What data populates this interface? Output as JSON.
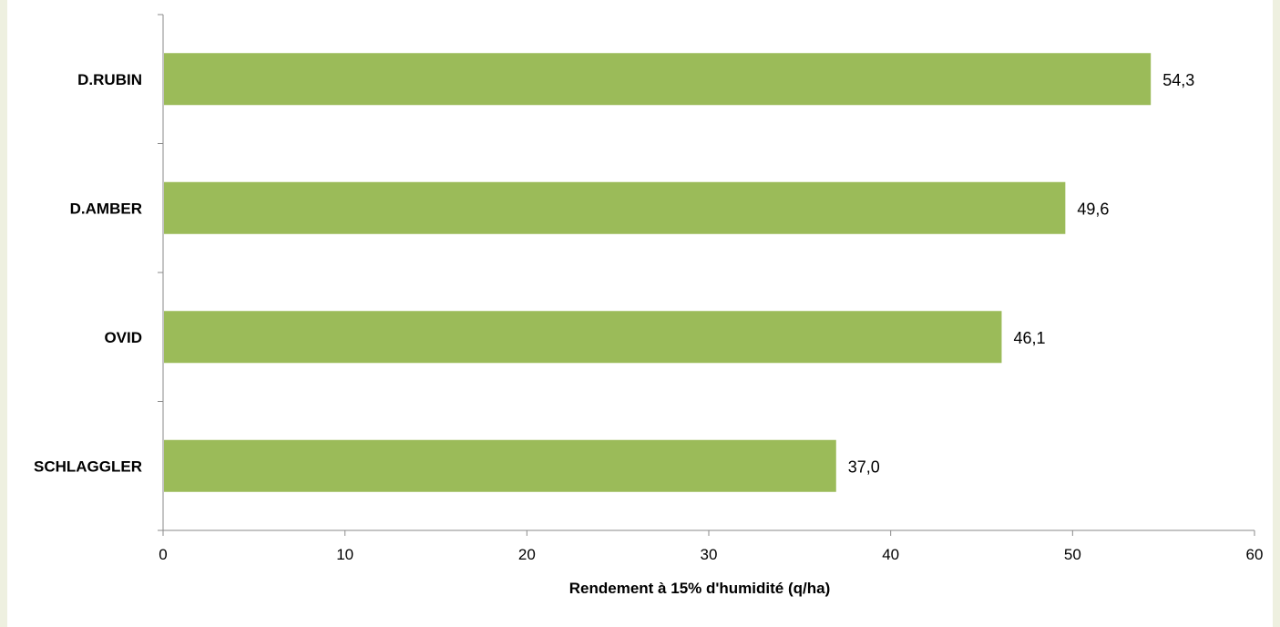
{
  "chart_data": {
    "type": "bar",
    "orientation": "horizontal",
    "categories": [
      "D.RUBIN",
      "D.AMBER",
      "OVID",
      "SCHLAGGLER"
    ],
    "values": [
      54.3,
      49.6,
      46.1,
      37.0
    ],
    "value_labels": [
      "54,3",
      "49,6",
      "46,1",
      "37,0"
    ],
    "xlabel": "Rendement à 15% d'humidité (q/ha)",
    "ylabel": "",
    "title": "",
    "xlim": [
      0,
      60
    ],
    "x_ticks": [
      0,
      10,
      20,
      30,
      40,
      50,
      60
    ],
    "x_tick_labels": [
      "0",
      "10",
      "20",
      "30",
      "40",
      "50",
      "60"
    ],
    "grid": false,
    "legend": "none",
    "bar_color": "#9bbb59",
    "background_color": "#eef0e0",
    "plot_background_color": "#ffffff"
  }
}
